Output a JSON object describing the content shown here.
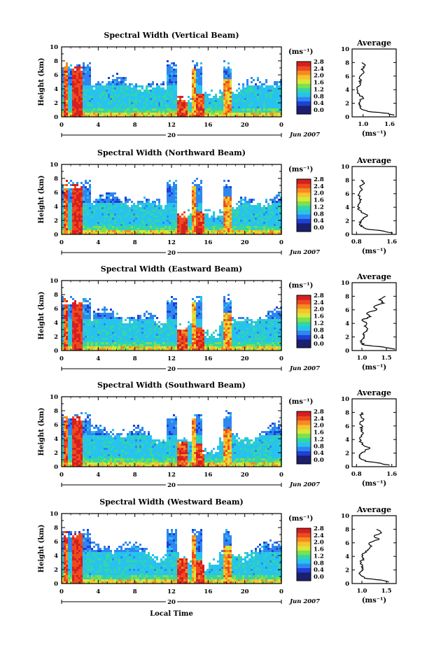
{
  "figure": {
    "xlabel": "Local Time",
    "colorbar": {
      "unit_label": "(ms⁻¹)",
      "ticks": [
        "0.0",
        "0.4",
        "0.8",
        "1.2",
        "1.6",
        "2.0",
        "2.4",
        "2.8"
      ],
      "range": [
        0.0,
        2.8
      ],
      "colors": [
        "#1b1f6e",
        "#1f3fd6",
        "#2f86f0",
        "#27c3ee",
        "#33d6a6",
        "#7ee04e",
        "#d4e93a",
        "#f6c32c",
        "#f68a22",
        "#ec4a1f",
        "#d61f1f"
      ]
    },
    "date_label": "Jun 2007",
    "day_label": "20",
    "avg_unit_label": "(ms⁻¹)",
    "avg_title": "Average"
  },
  "chart_data": [
    {
      "type": "heatmap",
      "title": "Spectral Width (Vertical Beam)",
      "xlabel": "Local Time",
      "ylabel": "Height (km)",
      "x_ticks": [
        "0",
        "4",
        "8",
        "12",
        "16",
        "20",
        "0"
      ],
      "xlim": [
        0,
        24
      ],
      "y_ticks": [
        "0",
        "2",
        "4",
        "6",
        "8",
        "10"
      ],
      "ylim": [
        0,
        10
      ],
      "z_range": [
        0.0,
        2.8
      ],
      "average": {
        "title": "Average",
        "xlabel": "(ms⁻¹)",
        "x_ticks": [
          "1.0",
          "1.6"
        ],
        "xlim": [
          0.75,
          1.75
        ],
        "y_ticks": [
          "0",
          "2",
          "4",
          "6",
          "8",
          "10"
        ],
        "ylim": [
          0,
          10
        ],
        "height_km": [
          0.2,
          0.5,
          0.8,
          1.2,
          1.6,
          2.0,
          2.4,
          2.8,
          3.2,
          3.6,
          4.0,
          4.5,
          5.0,
          5.5,
          6.0,
          6.5,
          7.0,
          7.5,
          8.0
        ],
        "value": [
          1.7,
          1.58,
          1.1,
          0.95,
          0.92,
          0.9,
          0.94,
          1.0,
          0.92,
          0.88,
          0.86,
          0.9,
          0.92,
          0.95,
          0.93,
          1.02,
          0.96,
          1.04,
          0.97
        ]
      }
    },
    {
      "type": "heatmap",
      "title": "Spectral Width (Northward Beam)",
      "xlabel": "Local Time",
      "ylabel": "Height (km)",
      "x_ticks": [
        "0",
        "4",
        "8",
        "12",
        "16",
        "20",
        "0"
      ],
      "xlim": [
        0,
        24
      ],
      "y_ticks": [
        "0",
        "2",
        "4",
        "6",
        "8",
        "10"
      ],
      "ylim": [
        0,
        10
      ],
      "z_range": [
        0.0,
        2.8
      ],
      "average": {
        "title": "Average",
        "xlabel": "(ms⁻¹)",
        "x_ticks": [
          "0.8",
          "1.6"
        ],
        "xlim": [
          0.7,
          1.7
        ],
        "y_ticks": [
          "0",
          "2",
          "4",
          "6",
          "8",
          "10"
        ],
        "ylim": [
          0,
          10
        ],
        "height_km": [
          0.2,
          0.5,
          0.8,
          1.2,
          1.6,
          2.0,
          2.4,
          2.8,
          3.2,
          3.6,
          4.0,
          4.5,
          5.0,
          5.5,
          6.0,
          6.5,
          7.0,
          7.5,
          8.0
        ],
        "value": [
          1.62,
          1.4,
          1.02,
          0.9,
          0.88,
          0.9,
          0.95,
          1.05,
          0.92,
          0.86,
          0.85,
          0.86,
          0.88,
          0.87,
          0.86,
          0.92,
          0.88,
          0.98,
          0.9
        ]
      }
    },
    {
      "type": "heatmap",
      "title": "Spectral Width (Eastward Beam)",
      "xlabel": "Local Time",
      "ylabel": "Height (km)",
      "x_ticks": [
        "0",
        "4",
        "8",
        "12",
        "16",
        "20",
        "0"
      ],
      "xlim": [
        0,
        24
      ],
      "y_ticks": [
        "0",
        "2",
        "4",
        "6",
        "8",
        "10"
      ],
      "ylim": [
        0,
        10
      ],
      "z_range": [
        0.0,
        2.8
      ],
      "average": {
        "title": "Average",
        "xlabel": "(ms⁻¹)",
        "x_ticks": [
          "1.0",
          "1.5"
        ],
        "xlim": [
          0.8,
          1.7
        ],
        "y_ticks": [
          "0",
          "2",
          "4",
          "6",
          "8",
          "10"
        ],
        "ylim": [
          0,
          10
        ],
        "height_km": [
          0.2,
          0.5,
          0.8,
          1.2,
          1.6,
          2.0,
          2.4,
          2.8,
          3.2,
          3.6,
          4.0,
          4.5,
          5.0,
          5.5,
          6.0,
          6.5,
          7.0,
          7.5,
          8.0
        ],
        "value": [
          1.68,
          1.45,
          1.05,
          0.98,
          1.0,
          1.05,
          1.02,
          1.08,
          1.12,
          1.05,
          1.1,
          1.0,
          1.18,
          1.1,
          1.3,
          1.25,
          1.45,
          1.35,
          1.48
        ]
      }
    },
    {
      "type": "heatmap",
      "title": "Spectral Width (Southward Beam)",
      "xlabel": "Local Time",
      "ylabel": "Height (km)",
      "x_ticks": [
        "0",
        "4",
        "8",
        "12",
        "16",
        "20",
        "0"
      ],
      "xlim": [
        0,
        24
      ],
      "y_ticks": [
        "0",
        "2",
        "4",
        "6",
        "8",
        "10"
      ],
      "ylim": [
        0,
        10
      ],
      "z_range": [
        0.0,
        2.8
      ],
      "average": {
        "title": "Average",
        "xlabel": "(ms⁻¹)",
        "x_ticks": [
          "0.8",
          "1.6"
        ],
        "xlim": [
          0.7,
          1.7
        ],
        "y_ticks": [
          "0",
          "2",
          "4",
          "6",
          "8",
          "10"
        ],
        "ylim": [
          0,
          10
        ],
        "height_km": [
          0.2,
          0.5,
          0.8,
          1.2,
          1.6,
          2.0,
          2.4,
          2.8,
          3.2,
          3.6,
          4.0,
          4.5,
          5.0,
          5.5,
          6.0,
          6.5,
          7.0,
          7.5,
          8.0
        ],
        "value": [
          1.55,
          1.35,
          1.0,
          0.9,
          0.88,
          0.92,
          1.0,
          1.1,
          0.95,
          0.9,
          0.88,
          0.92,
          0.95,
          0.9,
          0.93,
          0.88,
          0.97,
          0.9,
          0.94
        ]
      }
    },
    {
      "type": "heatmap",
      "title": "Spectral Width (Westward Beam)",
      "xlabel": "Local Time",
      "ylabel": "Height (km)",
      "x_ticks": [
        "0",
        "4",
        "8",
        "12",
        "16",
        "20",
        "0"
      ],
      "xlim": [
        0,
        24
      ],
      "y_ticks": [
        "0",
        "2",
        "4",
        "6",
        "8",
        "10"
      ],
      "ylim": [
        0,
        10
      ],
      "z_range": [
        0.0,
        2.8
      ],
      "average": {
        "title": "Average",
        "xlabel": "(ms⁻¹)",
        "x_ticks": [
          "1.0",
          "1.5"
        ],
        "xlim": [
          0.8,
          1.7
        ],
        "y_ticks": [
          "0",
          "2",
          "4",
          "6",
          "8",
          "10"
        ],
        "ylim": [
          0,
          10
        ],
        "height_km": [
          0.2,
          0.5,
          0.8,
          1.2,
          1.6,
          2.0,
          2.4,
          2.8,
          3.2,
          3.6,
          4.0,
          4.5,
          5.0,
          5.5,
          6.0,
          6.5,
          7.0,
          7.5,
          8.0
        ],
        "value": [
          1.55,
          1.4,
          1.05,
          0.98,
          0.96,
          1.0,
          1.02,
          1.0,
          0.98,
          1.02,
          1.0,
          1.05,
          1.12,
          1.2,
          1.15,
          1.35,
          1.25,
          1.4,
          1.3
        ]
      }
    }
  ]
}
